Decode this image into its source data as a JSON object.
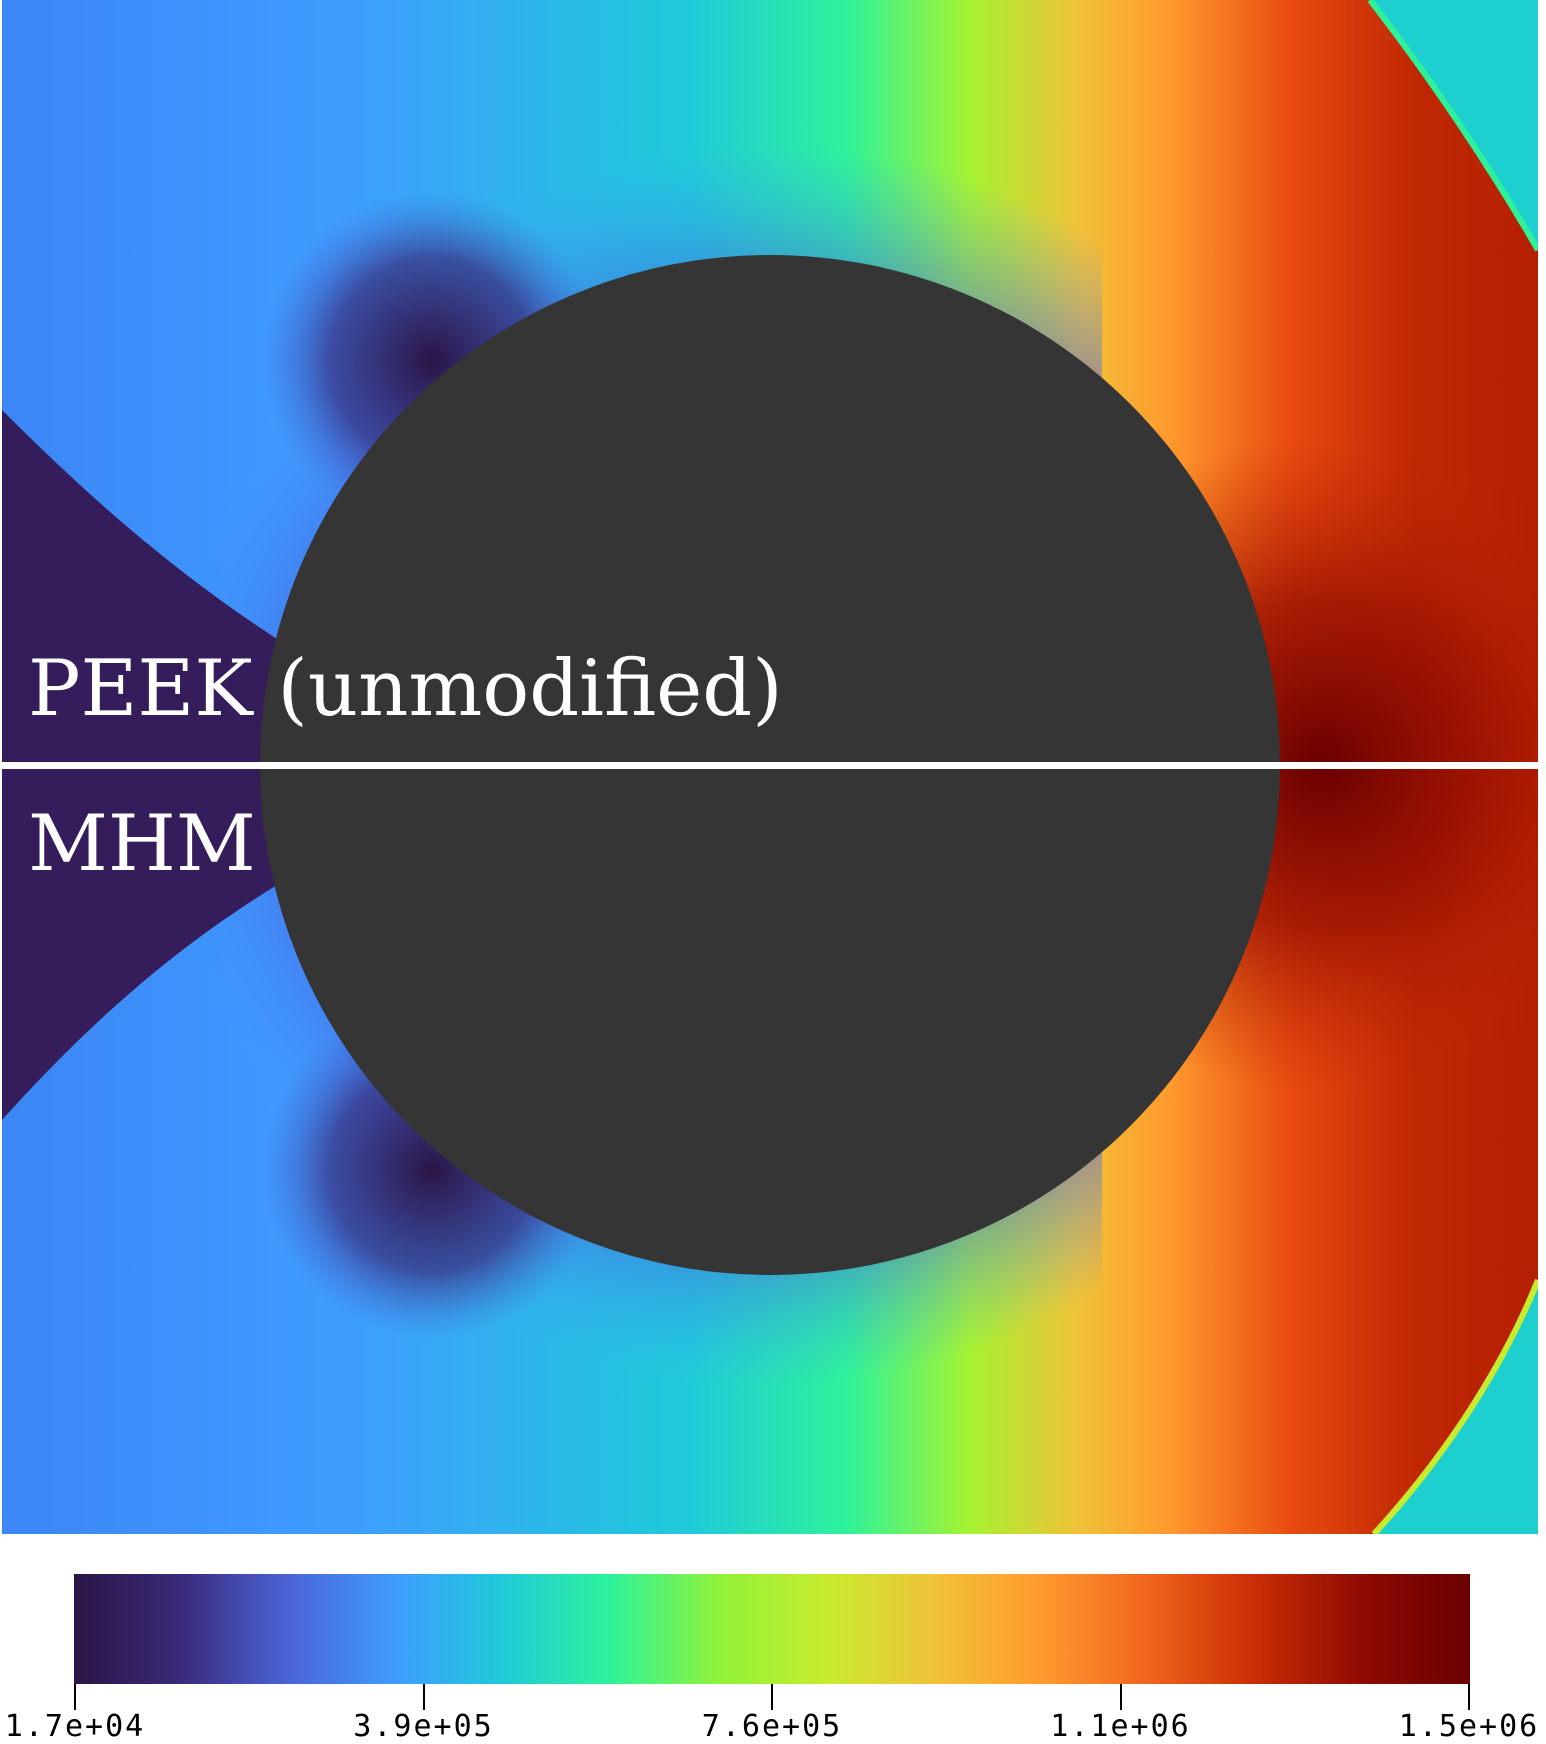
{
  "labels": {
    "top": "PEEK (unmodified)",
    "bottom": "MHM"
  },
  "colormap": [
    "#2b1547",
    "#3a2a7a",
    "#4b64d8",
    "#3f9cff",
    "#1fcbd8",
    "#2ef29a",
    "#8ff23a",
    "#c7ec2e",
    "#f0c238",
    "#ff9a2e",
    "#f0651c",
    "#c92d05",
    "#8f0a02",
    "#6a0000"
  ],
  "colorbar": {
    "ticks": [
      "1.7e+04",
      "3.9e+05",
      "7.6e+05",
      "1.1e+06",
      "1.5e+06"
    ]
  },
  "colors": {
    "obstacle": "#353535",
    "divider": "#ffffff",
    "background_field": "#1dcfcf"
  }
}
